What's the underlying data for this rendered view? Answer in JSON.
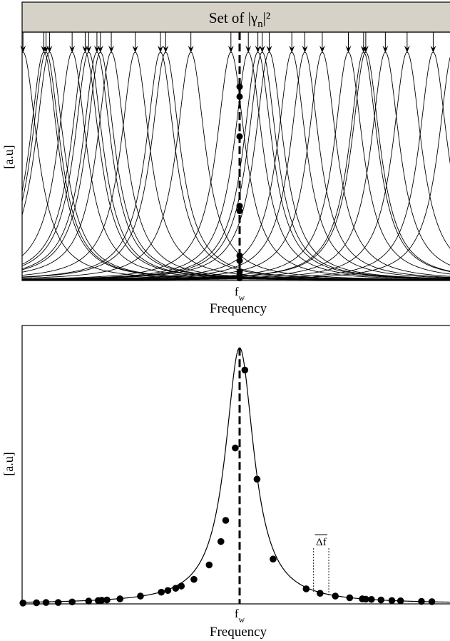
{
  "chart_data": [
    {
      "type": "line",
      "title": "Set of |γn|²",
      "title_parts": {
        "before": "Set of |γ",
        "subscript": "n",
        "after": "|²"
      },
      "title_bar_color": "#d6d2c8",
      "ylabel": "[a.u]",
      "xlabel": "Frequency",
      "marker_label": {
        "base": "f",
        "subscript": "w"
      },
      "xlim": [
        0,
        1
      ],
      "ylim": [
        0,
        1
      ],
      "linewidth_param": 0.04,
      "centers": [
        0.002,
        0.05,
        0.055,
        0.063,
        0.115,
        0.145,
        0.153,
        0.172,
        0.18,
        0.205,
        0.26,
        0.318,
        0.33,
        0.388,
        0.48,
        0.52,
        0.542,
        0.552,
        0.568,
        0.62,
        0.65,
        0.69,
        0.75,
        0.785,
        0.79,
        0.835,
        0.885,
        0.945,
        0.99
      ],
      "arrow_color": "#000000",
      "peak_level": 0.92,
      "dashed_line_x": 0.5,
      "points_on_line": [
        0.01,
        0.02,
        0.035,
        0.08,
        0.1,
        0.28,
        0.3,
        0.58,
        0.74,
        0.78
      ]
    },
    {
      "type": "line",
      "ylabel": "[a.u]",
      "xlabel": "Frequency",
      "marker_label": {
        "base": "f",
        "subscript": "w"
      },
      "annotation": "Δf",
      "xlim": [
        0,
        1
      ],
      "ylim": [
        0,
        1
      ],
      "center": 0.5,
      "linewidth_param": 0.04,
      "curve_peak": 0.92,
      "dashed_line_x": 0.5,
      "points": [
        {
          "x": 0.002,
          "y": 0.003
        },
        {
          "x": 0.033,
          "y": 0.004
        },
        {
          "x": 0.055,
          "y": 0.005
        },
        {
          "x": 0.083,
          "y": 0.005
        },
        {
          "x": 0.115,
          "y": 0.007
        },
        {
          "x": 0.153,
          "y": 0.01
        },
        {
          "x": 0.175,
          "y": 0.012
        },
        {
          "x": 0.183,
          "y": 0.013
        },
        {
          "x": 0.195,
          "y": 0.014
        },
        {
          "x": 0.225,
          "y": 0.018
        },
        {
          "x": 0.272,
          "y": 0.028
        },
        {
          "x": 0.32,
          "y": 0.042
        },
        {
          "x": 0.335,
          "y": 0.048
        },
        {
          "x": 0.353,
          "y": 0.056
        },
        {
          "x": 0.366,
          "y": 0.064
        },
        {
          "x": 0.395,
          "y": 0.088
        },
        {
          "x": 0.43,
          "y": 0.14
        },
        {
          "x": 0.457,
          "y": 0.224
        },
        {
          "x": 0.468,
          "y": 0.3
        },
        {
          "x": 0.49,
          "y": 0.56
        },
        {
          "x": 0.512,
          "y": 0.84
        },
        {
          "x": 0.54,
          "y": 0.448
        },
        {
          "x": 0.577,
          "y": 0.161
        },
        {
          "x": 0.653,
          "y": 0.054
        },
        {
          "x": 0.685,
          "y": 0.038
        },
        {
          "x": 0.72,
          "y": 0.028
        },
        {
          "x": 0.753,
          "y": 0.022
        },
        {
          "x": 0.782,
          "y": 0.018
        },
        {
          "x": 0.79,
          "y": 0.017
        },
        {
          "x": 0.803,
          "y": 0.016
        },
        {
          "x": 0.825,
          "y": 0.014
        },
        {
          "x": 0.85,
          "y": 0.012
        },
        {
          "x": 0.87,
          "y": 0.011
        },
        {
          "x": 0.918,
          "y": 0.009
        },
        {
          "x": 0.942,
          "y": 0.008
        }
      ],
      "delta_f": {
        "x1": 0.67,
        "x2": 0.705,
        "top": 0.2
      }
    }
  ]
}
